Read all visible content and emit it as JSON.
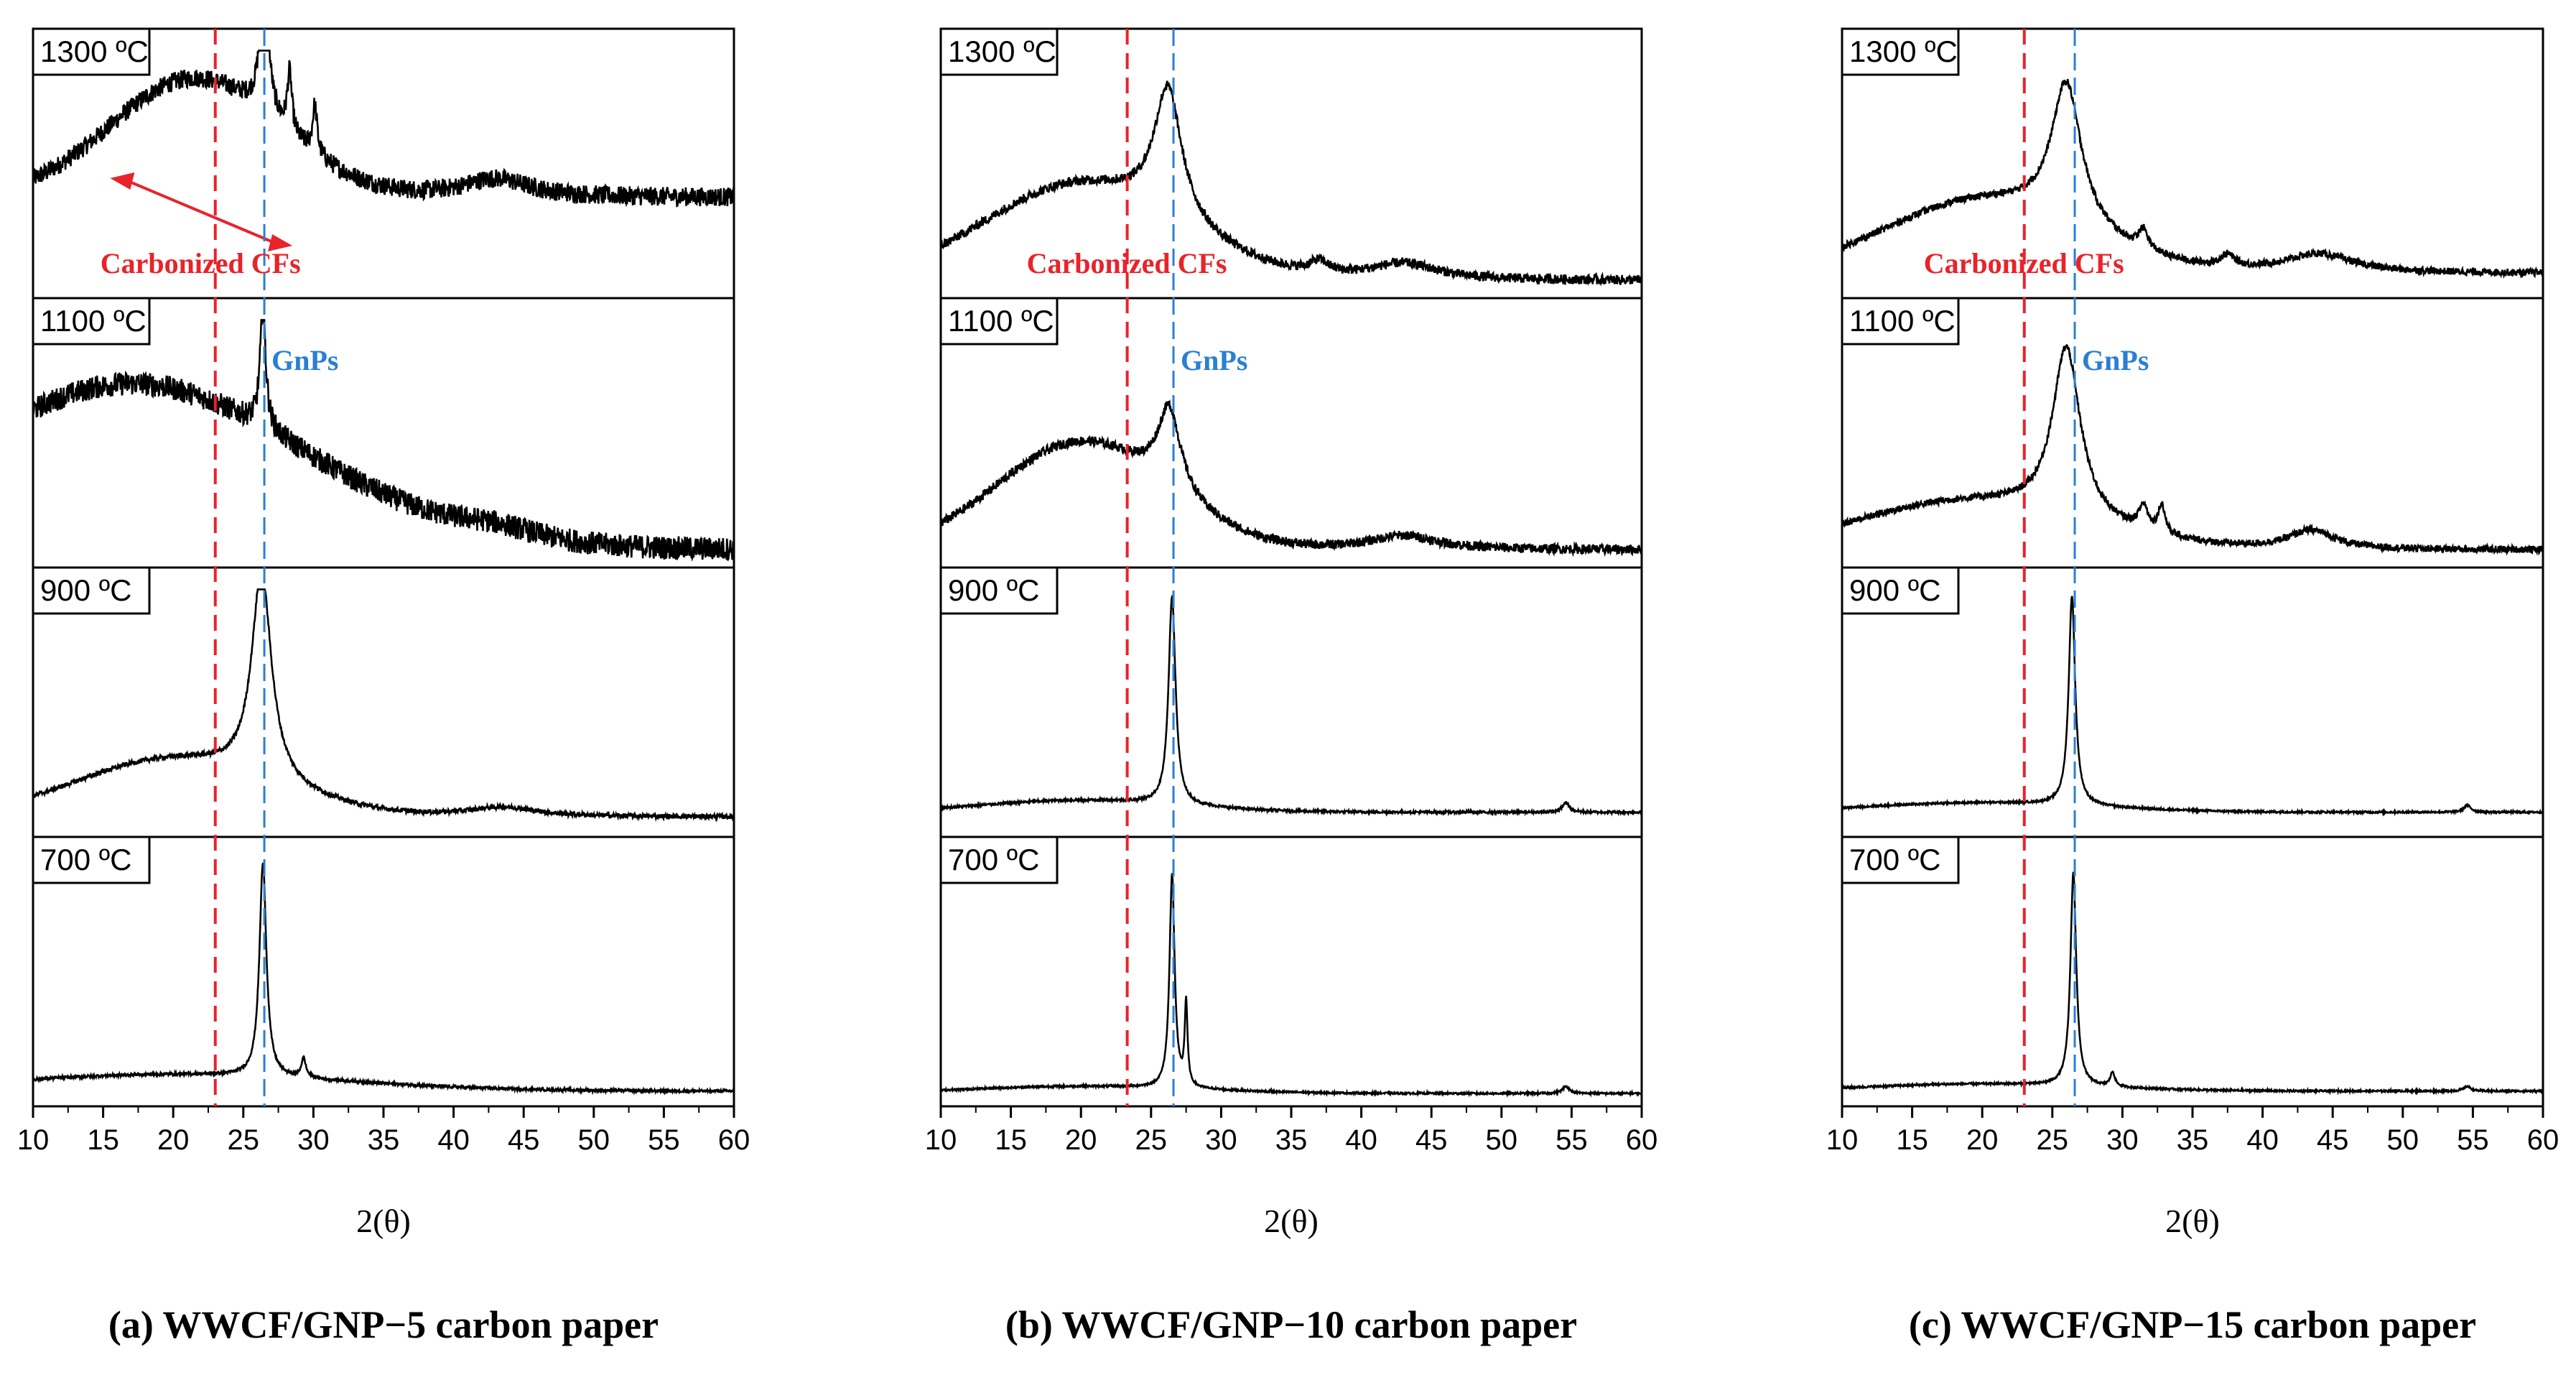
{
  "chart_data": [
    {
      "type": "line",
      "caption": "(a) WWCF/GNP−5 carbon paper",
      "xlabel": "2(θ)",
      "xlim": [
        10,
        60
      ],
      "xticks": [
        10,
        15,
        20,
        25,
        30,
        35,
        40,
        45,
        50,
        55,
        60
      ],
      "reference_lines": [
        {
          "x": 23,
          "color": "#e8232a",
          "label": "Carbonized CFs"
        },
        {
          "x": 26.5,
          "color": "#2a7fd4",
          "label": "GnPs"
        }
      ],
      "panels": [
        {
          "label": "1300 ºC",
          "base": 0.4,
          "hump": [
            21.5,
            6,
            0.5
          ],
          "peak": [
            26.5,
            0.35,
            0.6
          ],
          "decay": 0.05,
          "noise": 0.04,
          "extra": [
            [
              28.3,
              0.2,
              0.25
            ],
            [
              30.1,
              0.2,
              0.2
            ],
            [
              43,
              3,
              0.08
            ]
          ],
          "arrow": true
        },
        {
          "label": "1100 ºC",
          "base": 0.05,
          "hump": [
            17,
            12,
            0.7
          ],
          "peak": [
            26.4,
            0.25,
            0.5
          ],
          "decay": 0.0,
          "noise": 0.05,
          "extra": [
            [
              43,
              4,
              0.05
            ]
          ]
        },
        {
          "label": "900 ºC",
          "base": 0.06,
          "hump": [
            20,
            7,
            0.24
          ],
          "peak": [
            26.3,
            0.85,
            0.88
          ],
          "decay": 0.0,
          "noise": 0.01,
          "extra": [
            [
              43.5,
              3,
              0.04
            ]
          ]
        },
        {
          "label": "700 ºC",
          "base": 0.04,
          "hump": [
            20,
            12,
            0.07
          ],
          "peak": [
            26.4,
            0.3,
            0.9
          ],
          "decay": 0.0,
          "noise": 0.006,
          "extra": [
            [
              29.3,
              0.2,
              0.08
            ]
          ]
        }
      ]
    },
    {
      "type": "line",
      "caption": "(b) WWCF/GNP−10 carbon paper",
      "xlabel": "2(θ)",
      "xlim": [
        10,
        60
      ],
      "xticks": [
        10,
        15,
        20,
        25,
        30,
        35,
        40,
        45,
        50,
        55,
        60
      ],
      "reference_lines": [
        {
          "x": 23.3,
          "color": "#e8232a",
          "label": "Carbonized CFs"
        },
        {
          "x": 26.6,
          "color": "#2a7fd4",
          "label": "GnPs"
        }
      ],
      "panels": [
        {
          "label": "1300 ºC",
          "base": 0.05,
          "hump": [
            20,
            7,
            0.4
          ],
          "peak": [
            26.2,
            1.2,
            0.55
          ],
          "decay": 0.0,
          "noise": 0.02,
          "extra": [
            [
              37,
              0.8,
              0.05
            ],
            [
              43,
              3,
              0.07
            ]
          ]
        },
        {
          "label": "1100 ºC",
          "base": 0.05,
          "hump": [
            20,
            6,
            0.45
          ],
          "peak": [
            26.3,
            1.0,
            0.35
          ],
          "decay": 0.0,
          "noise": 0.02,
          "extra": [
            [
              43,
              3,
              0.06
            ]
          ]
        },
        {
          "label": "900 ºC",
          "base": 0.08,
          "hump": [
            20,
            7,
            0.05
          ],
          "peak": [
            26.5,
            0.3,
            0.88
          ],
          "decay": 0.0,
          "noise": 0.005,
          "extra": [
            [
              54.6,
              0.3,
              0.04
            ]
          ]
        },
        {
          "label": "700 ºC",
          "base": 0.03,
          "hump": [
            20,
            8,
            0.03
          ],
          "peak": [
            26.5,
            0.22,
            0.9
          ],
          "decay": 0.0,
          "noise": 0.004,
          "extra": [
            [
              27.5,
              0.12,
              0.35
            ],
            [
              54.6,
              0.3,
              0.03
            ]
          ]
        }
      ]
    },
    {
      "type": "line",
      "caption": "(c) WWCF/GNP−15 carbon paper",
      "xlabel": "2(θ)",
      "xlim": [
        10,
        60
      ],
      "xticks": [
        10,
        15,
        20,
        25,
        30,
        35,
        40,
        45,
        50,
        55,
        60
      ],
      "reference_lines": [
        {
          "x": 23,
          "color": "#e8232a",
          "label": "Carbonized CFs"
        },
        {
          "x": 26.6,
          "color": "#2a7fd4",
          "label": "GnPs"
        }
      ],
      "panels": [
        {
          "label": "1300 ºC",
          "base": 0.08,
          "hump": [
            20,
            7,
            0.3
          ],
          "peak": [
            26,
            1.3,
            0.6
          ],
          "decay": 0.0,
          "noise": 0.015,
          "extra": [
            [
              31.5,
              0.4,
              0.08
            ],
            [
              37.5,
              0.6,
              0.05
            ],
            [
              44,
              3,
              0.08
            ]
          ]
        },
        {
          "label": "1100 ºC",
          "base": 0.05,
          "hump": [
            19,
            8,
            0.2
          ],
          "peak": [
            26,
            1.2,
            0.72
          ],
          "decay": 0.0,
          "noise": 0.015,
          "extra": [
            [
              31.5,
              0.4,
              0.1
            ],
            [
              32.8,
              0.3,
              0.12
            ],
            [
              43.5,
              2,
              0.08
            ]
          ]
        },
        {
          "label": "900 ºC",
          "base": 0.08,
          "hump": [
            20,
            8,
            0.04
          ],
          "peak": [
            26.4,
            0.28,
            0.88
          ],
          "decay": 0.0,
          "noise": 0.004,
          "extra": [
            [
              54.6,
              0.3,
              0.03
            ]
          ]
        },
        {
          "label": "700 ºC",
          "base": 0.04,
          "hump": [
            20,
            8,
            0.03
          ],
          "peak": [
            26.5,
            0.25,
            0.9
          ],
          "decay": 0.0,
          "noise": 0.004,
          "extra": [
            [
              29.3,
              0.2,
              0.06
            ],
            [
              54.6,
              0.3,
              0.02
            ]
          ]
        }
      ]
    }
  ]
}
